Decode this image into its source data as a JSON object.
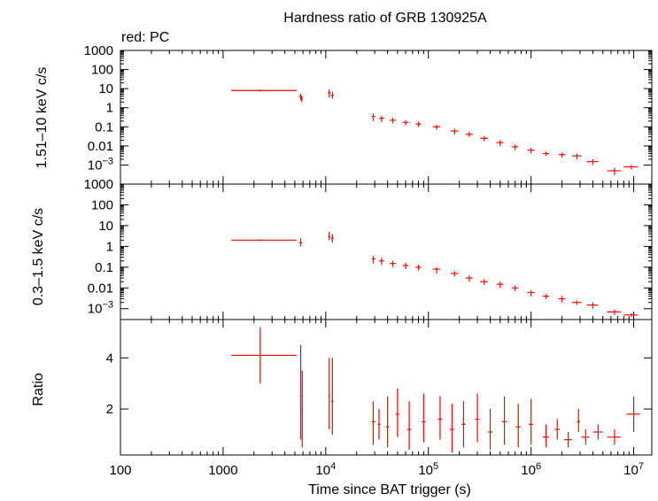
{
  "chart_data": {
    "title": "Hardness ratio of GRB 130925A",
    "legend": "red: PC",
    "type": "scatter",
    "log_x": true,
    "xlabel": "Time since BAT trigger (s)",
    "xlim": [
      100,
      15000000
    ],
    "x_ticks": [
      {
        "value": 100,
        "label": "100"
      },
      {
        "value": 1000,
        "label": "1000"
      },
      {
        "value": 10000,
        "label": "10⁴"
      },
      {
        "value": 100000,
        "label": "10⁵"
      },
      {
        "value": 1000000,
        "label": "10⁶"
      },
      {
        "value": 10000000,
        "label": "10⁷"
      }
    ],
    "series_color": "#ff0000",
    "panels": [
      {
        "id": "hard",
        "ylabel": "1.51–10 keV c/s",
        "log_y": true,
        "ylim": [
          0.0001,
          1000
        ],
        "y_ticks": [
          {
            "value": 1000,
            "label": "1000"
          },
          {
            "value": 100,
            "label": "100"
          },
          {
            "value": 10,
            "label": "10"
          },
          {
            "value": 1,
            "label": "1"
          },
          {
            "value": 0.1,
            "label": "0.1"
          },
          {
            "value": 0.01,
            "label": "0.01"
          },
          {
            "value": 0.001,
            "label": "10⁻³"
          }
        ],
        "points": [
          {
            "x": 2300,
            "xlo": 1200,
            "xhi": 5200,
            "y": 8,
            "ylo": 7,
            "yhi": 9
          },
          {
            "x": 5700,
            "xlo": 5500,
            "xhi": 5900,
            "y": 4,
            "ylo": 2.5,
            "yhi": 5.5
          },
          {
            "x": 5850,
            "xlo": 5750,
            "xhi": 5950,
            "y": 3,
            "ylo": 2,
            "yhi": 4
          },
          {
            "x": 10800,
            "xlo": 10500,
            "xhi": 11100,
            "y": 6,
            "ylo": 3.5,
            "yhi": 9
          },
          {
            "x": 11600,
            "xlo": 11200,
            "xhi": 12000,
            "y": 4.5,
            "ylo": 3,
            "yhi": 7
          },
          {
            "x": 29000,
            "xlo": 28000,
            "xhi": 30500,
            "y": 0.35,
            "ylo": 0.2,
            "yhi": 0.5
          },
          {
            "x": 35000,
            "xlo": 33000,
            "xhi": 37000,
            "y": 0.28,
            "ylo": 0.18,
            "yhi": 0.38
          },
          {
            "x": 45000,
            "xlo": 42000,
            "xhi": 48000,
            "y": 0.22,
            "ylo": 0.15,
            "yhi": 0.3
          },
          {
            "x": 60000,
            "xlo": 56000,
            "xhi": 64000,
            "y": 0.17,
            "ylo": 0.12,
            "yhi": 0.22
          },
          {
            "x": 80000,
            "xlo": 75000,
            "xhi": 85000,
            "y": 0.14,
            "ylo": 0.1,
            "yhi": 0.18
          },
          {
            "x": 120000,
            "xlo": 110000,
            "xhi": 130000,
            "y": 0.1,
            "ylo": 0.07,
            "yhi": 0.13
          },
          {
            "x": 180000,
            "xlo": 165000,
            "xhi": 195000,
            "y": 0.06,
            "ylo": 0.04,
            "yhi": 0.08
          },
          {
            "x": 250000,
            "xlo": 230000,
            "xhi": 270000,
            "y": 0.04,
            "ylo": 0.03,
            "yhi": 0.055
          },
          {
            "x": 350000,
            "xlo": 320000,
            "xhi": 380000,
            "y": 0.025,
            "ylo": 0.018,
            "yhi": 0.032
          },
          {
            "x": 500000,
            "xlo": 460000,
            "xhi": 540000,
            "y": 0.015,
            "ylo": 0.01,
            "yhi": 0.02
          },
          {
            "x": 700000,
            "xlo": 650000,
            "xhi": 750000,
            "y": 0.009,
            "ylo": 0.006,
            "yhi": 0.012
          },
          {
            "x": 1000000,
            "xlo": 920000,
            "xhi": 1080000,
            "y": 0.006,
            "ylo": 0.004,
            "yhi": 0.008
          },
          {
            "x": 1400000,
            "xlo": 1300000,
            "xhi": 1500000,
            "y": 0.004,
            "ylo": 0.003,
            "yhi": 0.005
          },
          {
            "x": 2000000,
            "xlo": 1850000,
            "xhi": 2150000,
            "y": 0.0035,
            "ylo": 0.0025,
            "yhi": 0.0045
          },
          {
            "x": 2800000,
            "xlo": 2500000,
            "xhi": 3100000,
            "y": 0.003,
            "ylo": 0.002,
            "yhi": 0.004
          },
          {
            "x": 4000000,
            "xlo": 3500000,
            "xhi": 4500000,
            "y": 0.0015,
            "ylo": 0.001,
            "yhi": 0.002
          },
          {
            "x": 6500000,
            "xlo": 5500000,
            "xhi": 7500000,
            "y": 0.0005,
            "ylo": 0.0003,
            "yhi": 0.0007
          },
          {
            "x": 9500000,
            "xlo": 8000000,
            "xhi": 11000000,
            "y": 0.0008,
            "ylo": 0.0006,
            "yhi": 0.001
          }
        ]
      },
      {
        "id": "soft",
        "ylabel": "0.3–1.5 keV c/s",
        "log_y": true,
        "ylim": [
          0.0003,
          1000
        ],
        "y_ticks": [
          {
            "value": 1000,
            "label": "1000"
          },
          {
            "value": 100,
            "label": "100"
          },
          {
            "value": 10,
            "label": "10"
          },
          {
            "value": 1,
            "label": "1"
          },
          {
            "value": 0.1,
            "label": "0.1"
          },
          {
            "value": 0.01,
            "label": "0.01"
          },
          {
            "value": 0.001,
            "label": "10⁻³"
          }
        ],
        "points": [
          {
            "x": 2300,
            "xlo": 1200,
            "xhi": 5200,
            "y": 2,
            "ylo": 1.8,
            "yhi": 2.2
          },
          {
            "x": 5700,
            "xlo": 5500,
            "xhi": 5900,
            "y": 1.5,
            "ylo": 1,
            "yhi": 2.5
          },
          {
            "x": 10800,
            "xlo": 10500,
            "xhi": 11100,
            "y": 3,
            "ylo": 2,
            "yhi": 5
          },
          {
            "x": 11600,
            "xlo": 11200,
            "xhi": 12000,
            "y": 2.5,
            "ylo": 1.5,
            "yhi": 4
          },
          {
            "x": 29000,
            "xlo": 28000,
            "xhi": 30500,
            "y": 0.25,
            "ylo": 0.15,
            "yhi": 0.35
          },
          {
            "x": 35000,
            "xlo": 33000,
            "xhi": 37000,
            "y": 0.2,
            "ylo": 0.13,
            "yhi": 0.28
          },
          {
            "x": 45000,
            "xlo": 42000,
            "xhi": 48000,
            "y": 0.15,
            "ylo": 0.1,
            "yhi": 0.2
          },
          {
            "x": 60000,
            "xlo": 56000,
            "xhi": 64000,
            "y": 0.12,
            "ylo": 0.08,
            "yhi": 0.16
          },
          {
            "x": 80000,
            "xlo": 75000,
            "xhi": 85000,
            "y": 0.1,
            "ylo": 0.07,
            "yhi": 0.13
          },
          {
            "x": 120000,
            "xlo": 110000,
            "xhi": 130000,
            "y": 0.08,
            "ylo": 0.05,
            "yhi": 0.1
          },
          {
            "x": 180000,
            "xlo": 165000,
            "xhi": 195000,
            "y": 0.05,
            "ylo": 0.035,
            "yhi": 0.065
          },
          {
            "x": 250000,
            "xlo": 230000,
            "xhi": 270000,
            "y": 0.03,
            "ylo": 0.02,
            "yhi": 0.04
          },
          {
            "x": 350000,
            "xlo": 320000,
            "xhi": 380000,
            "y": 0.02,
            "ylo": 0.014,
            "yhi": 0.026
          },
          {
            "x": 500000,
            "xlo": 460000,
            "xhi": 540000,
            "y": 0.015,
            "ylo": 0.01,
            "yhi": 0.02
          },
          {
            "x": 700000,
            "xlo": 650000,
            "xhi": 750000,
            "y": 0.01,
            "ylo": 0.007,
            "yhi": 0.013
          },
          {
            "x": 1000000,
            "xlo": 920000,
            "xhi": 1080000,
            "y": 0.006,
            "ylo": 0.004,
            "yhi": 0.008
          },
          {
            "x": 1400000,
            "xlo": 1300000,
            "xhi": 1500000,
            "y": 0.004,
            "ylo": 0.003,
            "yhi": 0.005
          },
          {
            "x": 2000000,
            "xlo": 1850000,
            "xhi": 2150000,
            "y": 0.003,
            "ylo": 0.002,
            "yhi": 0.004
          },
          {
            "x": 2800000,
            "xlo": 2500000,
            "xhi": 3100000,
            "y": 0.002,
            "ylo": 0.0015,
            "yhi": 0.0025
          },
          {
            "x": 4000000,
            "xlo": 3500000,
            "xhi": 4500000,
            "y": 0.0015,
            "ylo": 0.001,
            "yhi": 0.002
          },
          {
            "x": 6500000,
            "xlo": 5500000,
            "xhi": 7500000,
            "y": 0.0007,
            "ylo": 0.0005,
            "yhi": 0.0009
          },
          {
            "x": 9500000,
            "xlo": 8000000,
            "xhi": 11000000,
            "y": 0.0005,
            "ylo": 0.0004,
            "yhi": 0.0006
          }
        ]
      },
      {
        "id": "ratio",
        "ylabel": "Ratio",
        "log_y": false,
        "ylim": [
          0.2,
          5.5
        ],
        "y_ticks": [
          {
            "value": 2,
            "label": "2"
          },
          {
            "value": 4,
            "label": "4"
          }
        ],
        "points": [
          {
            "x": 2300,
            "xlo": 1200,
            "xhi": 5200,
            "y": 4.1,
            "ylo": 3,
            "yhi": 5.2
          },
          {
            "x": 5700,
            "xlo": 5600,
            "xhi": 5800,
            "y": 2.5,
            "ylo": 0.8,
            "yhi": 4.5
          },
          {
            "x": 5900,
            "xlo": 5800,
            "xhi": 6000,
            "y": 2,
            "ylo": 0.5,
            "yhi": 3.5
          },
          {
            "x": 10800,
            "xlo": 10600,
            "xhi": 11000,
            "y": 2.5,
            "ylo": 1.2,
            "yhi": 4
          },
          {
            "x": 11600,
            "xlo": 11300,
            "xhi": 11900,
            "y": 2.3,
            "ylo": 1,
            "yhi": 4
          },
          {
            "x": 29000,
            "xlo": 28000,
            "xhi": 30500,
            "y": 1.5,
            "ylo": 0.6,
            "yhi": 2.3
          },
          {
            "x": 33000,
            "xlo": 32000,
            "xhi": 34000,
            "y": 1.4,
            "ylo": 0.8,
            "yhi": 2
          },
          {
            "x": 40000,
            "xlo": 38500,
            "xhi": 41500,
            "y": 1.3,
            "ylo": 0.5,
            "yhi": 2.5
          },
          {
            "x": 50000,
            "xlo": 48000,
            "xhi": 52000,
            "y": 1.8,
            "ylo": 0.9,
            "yhi": 2.8
          },
          {
            "x": 65000,
            "xlo": 62000,
            "xhi": 68000,
            "y": 1.2,
            "ylo": 0.4,
            "yhi": 2.3
          },
          {
            "x": 90000,
            "xlo": 86000,
            "xhi": 94000,
            "y": 1.5,
            "ylo": 0.7,
            "yhi": 2.6
          },
          {
            "x": 130000,
            "xlo": 124000,
            "xhi": 136000,
            "y": 1.6,
            "ylo": 0.8,
            "yhi": 2.5
          },
          {
            "x": 170000,
            "xlo": 162000,
            "xhi": 178000,
            "y": 1.2,
            "ylo": 0.3,
            "yhi": 2.2
          },
          {
            "x": 220000,
            "xlo": 210000,
            "xhi": 230000,
            "y": 1.4,
            "ylo": 0.5,
            "yhi": 2.3
          },
          {
            "x": 300000,
            "xlo": 285000,
            "xhi": 315000,
            "y": 1.6,
            "ylo": 0.7,
            "yhi": 2.6
          },
          {
            "x": 400000,
            "xlo": 380000,
            "xhi": 420000,
            "y": 1.1,
            "ylo": 0.4,
            "yhi": 2
          },
          {
            "x": 550000,
            "xlo": 520000,
            "xhi": 580000,
            "y": 1.5,
            "ylo": 0.6,
            "yhi": 2.5
          },
          {
            "x": 750000,
            "xlo": 710000,
            "xhi": 790000,
            "y": 1.3,
            "ylo": 0.5,
            "yhi": 2.2
          },
          {
            "x": 1000000,
            "xlo": 950000,
            "xhi": 1050000,
            "y": 1.4,
            "ylo": 0.6,
            "yhi": 2.4
          },
          {
            "x": 1400000,
            "xlo": 1300000,
            "xhi": 1500000,
            "y": 0.9,
            "ylo": 0.5,
            "yhi": 1.4
          },
          {
            "x": 1800000,
            "xlo": 1700000,
            "xhi": 1900000,
            "y": 1.2,
            "ylo": 0.8,
            "yhi": 1.6
          },
          {
            "x": 2300000,
            "xlo": 2100000,
            "xhi": 2500000,
            "y": 0.8,
            "ylo": 0.5,
            "yhi": 1.1
          },
          {
            "x": 2900000,
            "xlo": 2800000,
            "xhi": 3000000,
            "y": 1.5,
            "ylo": 1.1,
            "yhi": 2
          },
          {
            "x": 3400000,
            "xlo": 3100000,
            "xhi": 3700000,
            "y": 0.9,
            "ylo": 0.6,
            "yhi": 1.2
          },
          {
            "x": 4500000,
            "xlo": 4000000,
            "xhi": 5000000,
            "y": 1.1,
            "ylo": 0.8,
            "yhi": 1.4
          },
          {
            "x": 6500000,
            "xlo": 5500000,
            "xhi": 7500000,
            "y": 0.9,
            "ylo": 0.6,
            "yhi": 1.2
          },
          {
            "x": 10000000,
            "xlo": 8500000,
            "xhi": 11500000,
            "y": 1.8,
            "ylo": 1.1,
            "yhi": 2.5
          }
        ]
      }
    ]
  }
}
